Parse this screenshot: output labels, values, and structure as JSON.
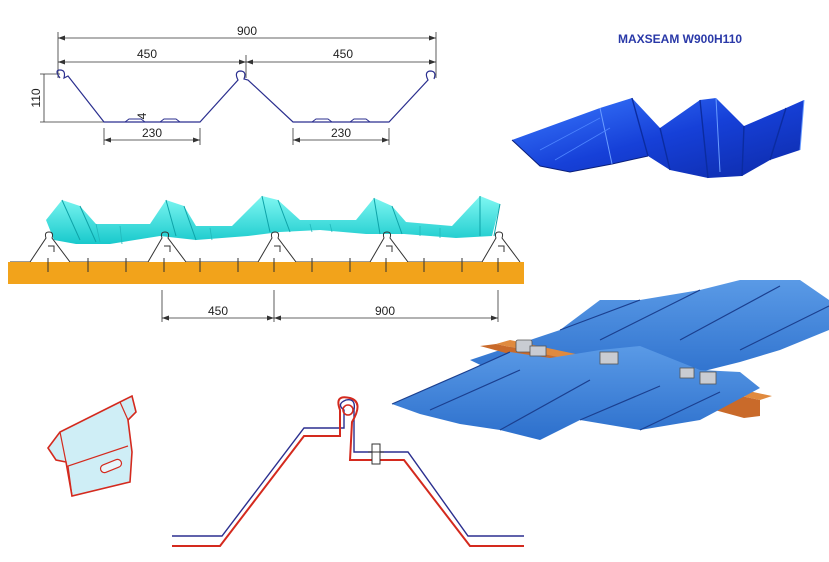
{
  "title": "MAXSEAM W900H110",
  "profile_dims": {
    "total_width": "900",
    "half_width_left": "450",
    "half_width_right": "450",
    "height": "110",
    "thickness": "4",
    "pan_left": "230",
    "pan_right": "230"
  },
  "spacing_dims": {
    "clip_spacing": "450",
    "sheet_width": "900"
  },
  "colors": {
    "profile_line": "#2b2f8f",
    "sheet_blue": "#1d4fe0",
    "sheet_cyan": "#2ee6e0",
    "purlin_orange": "#f2a31b",
    "clip_red": "#d42a1e",
    "clip_fill": "#cfeef6"
  }
}
